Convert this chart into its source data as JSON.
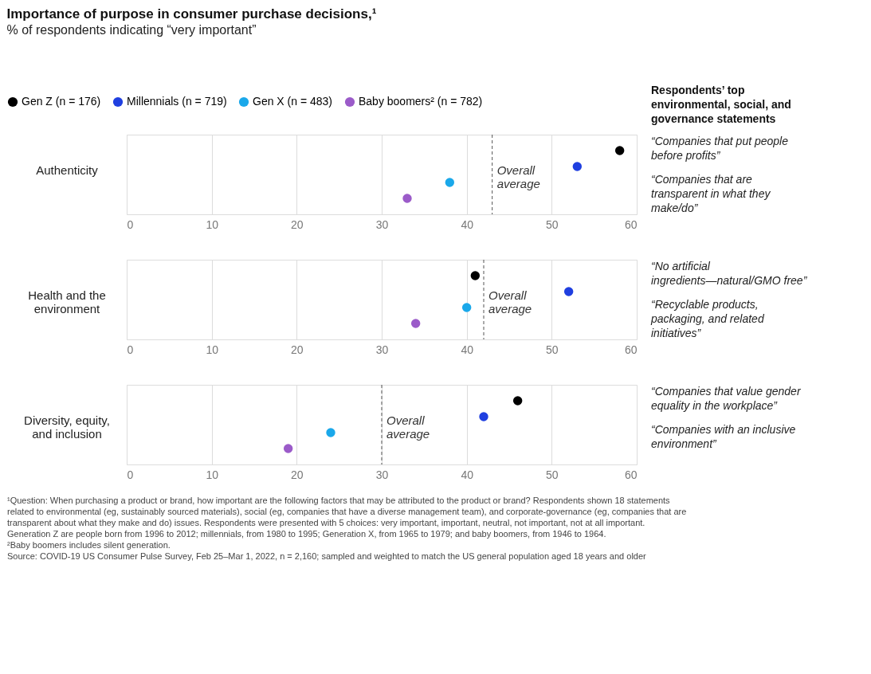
{
  "chart_data": [
    {
      "type": "scatter",
      "orientation": "horizontal",
      "title": "Importance of purpose in consumer purchase decisions,¹",
      "subtitle": "% of respondents indicating “very important”",
      "categories": [
        "Authenticity"
      ],
      "series": [
        {
          "name": "Gen Z (n = 176)",
          "color": "#000000",
          "values": [
            58
          ]
        },
        {
          "name": "Millennials (n = 719)",
          "color": "#1f3fe0",
          "values": [
            53
          ]
        },
        {
          "name": "Gen X (n = 483)",
          "color": "#1aa8ea",
          "values": [
            38
          ]
        },
        {
          "name": "Baby boomers² (n = 782)",
          "color": "#9b5bc9",
          "values": [
            33
          ]
        }
      ],
      "xlim": [
        0,
        60
      ],
      "xticks": [
        0,
        10,
        20,
        30,
        40,
        50,
        60
      ],
      "grid": "x",
      "marker": "circle",
      "legend": "top",
      "ref_lines": [
        {
          "axis": "x",
          "value": 43,
          "label": "Overall average",
          "line_style": "dashed"
        }
      ],
      "annotations": [
        "Respondents’ top environmental, social, and governance statements",
        "“Companies that put people before profits”",
        "“Companies that are transparent in what they make/do”"
      ]
    },
    {
      "type": "scatter",
      "orientation": "horizontal",
      "categories": [
        "Health and the environment"
      ],
      "series": [
        {
          "color": "#000000",
          "values": [
            41
          ]
        },
        {
          "color": "#1f3fe0",
          "values": [
            52
          ]
        },
        {
          "color": "#1aa8ea",
          "values": [
            40
          ]
        },
        {
          "color": "#9b5bc9",
          "values": [
            34
          ]
        }
      ],
      "xlim": [
        0,
        60
      ],
      "xticks": [
        0,
        10,
        20,
        30,
        40,
        50,
        60
      ],
      "grid": "x",
      "marker": "circle",
      "ref_lines": [
        {
          "axis": "x",
          "value": 42,
          "label": "Overall average",
          "line_style": "dashed"
        }
      ],
      "annotations": [
        "“No artificial ingredients—natural/GMO free”",
        "“Recyclable products, packaging, and related initiatives”"
      ]
    },
    {
      "type": "scatter",
      "orientation": "horizontal",
      "categories": [
        "Diversity, equity, and inclusion"
      ],
      "series": [
        {
          "color": "#000000",
          "values": [
            46
          ]
        },
        {
          "color": "#1f3fe0",
          "values": [
            42
          ]
        },
        {
          "color": "#1aa8ea",
          "values": [
            24
          ]
        },
        {
          "color": "#9b5bc9",
          "values": [
            19
          ]
        }
      ],
      "xlim": [
        0,
        60
      ],
      "xticks": [
        0,
        10,
        20,
        30,
        40,
        50,
        60
      ],
      "grid": "x",
      "marker": "circle",
      "ref_lines": [
        {
          "axis": "x",
          "value": 30,
          "label": "Overall average",
          "line_style": "dashed"
        }
      ],
      "annotations": [
        "“Companies that value gender equality in the workplace”",
        "“Companies with an inclusive environment”",
        "¹Question: When purchasing a product or brand, how important are the following factors that may be attributed to the product or brand? Respondents shown 18 statements related to environmental (eg, sustainably sourced materials), social (eg, companies that have a diverse management team), and corporate-governance (eg, companies that are transparent about what they make and do) issues. Respondents were presented with 5 choices: very important, important, neutral, not important, not at all important. Generation Z are people born from 1996 to 2012; millennials, from 1980 to 1995; Generation X, from 1965 to 1979; and baby boomers, from 1946 to 1964.",
        "²Baby boomers includes silent generation.",
        "Source: COVID-19 US Consumer Pulse Survey, Feb 25–Mar 1, 2022, n = 2,160; sampled and weighted to match the US general population aged 18 years and older"
      ]
    }
  ]
}
